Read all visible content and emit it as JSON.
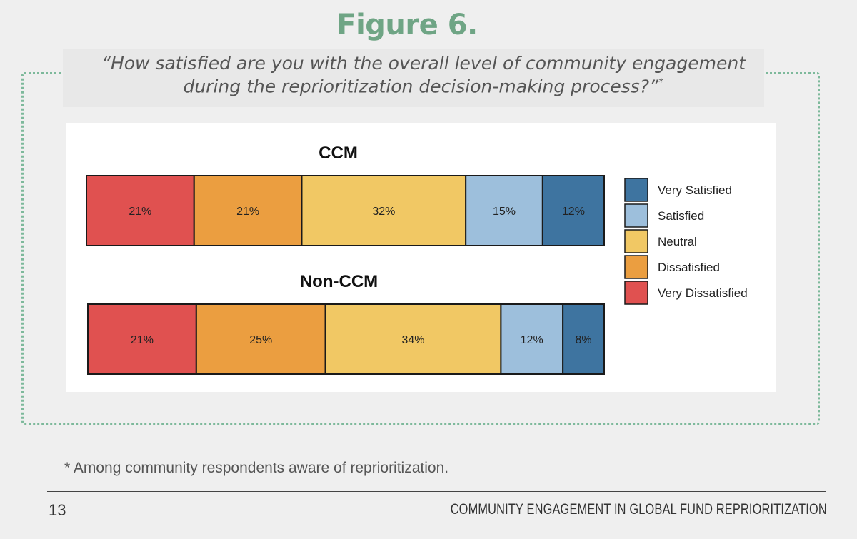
{
  "figure": {
    "title": "Figure 6.",
    "question_line1": "“How satisfied are you with the overall level of community engagement",
    "question_line2": "during the reprioritization decision-making process?”",
    "question_marker": "*"
  },
  "footnote": "* Among community respondents aware of reprioritization.",
  "footer": {
    "page_number": "13",
    "running_title": "COMMUNITY ENGAGEMENT IN GLOBAL FUND REPRIORITIZATION"
  },
  "chart_data": {
    "type": "bar",
    "orientation": "horizontal-stacked-100",
    "categories": [
      "CCM",
      "Non-CCM"
    ],
    "series": [
      {
        "name": "Very Dissatisfied",
        "color": "#e05150",
        "values": [
          21,
          21
        ],
        "labels": [
          "21%",
          "21%"
        ]
      },
      {
        "name": "Dissatisfied",
        "color": "#eb9e40",
        "values": [
          21,
          25
        ],
        "labels": [
          "21%",
          "25%"
        ]
      },
      {
        "name": "Neutral",
        "color": "#f1c864",
        "values": [
          32,
          34
        ],
        "labels": [
          "32%",
          "34%"
        ]
      },
      {
        "name": "Satisfied",
        "color": "#9dbfdc",
        "values": [
          15,
          12
        ],
        "labels": [
          "15%",
          "12%"
        ]
      },
      {
        "name": "Very Satisfied",
        "color": "#3e74a0",
        "values": [
          12,
          8
        ],
        "labels": [
          "12%",
          "8%"
        ]
      }
    ],
    "legend_order": [
      "Very Satisfied",
      "Satisfied",
      "Neutral",
      "Dissatisfied",
      "Very Dissatisfied"
    ],
    "legend_position": "right",
    "grid": false
  }
}
